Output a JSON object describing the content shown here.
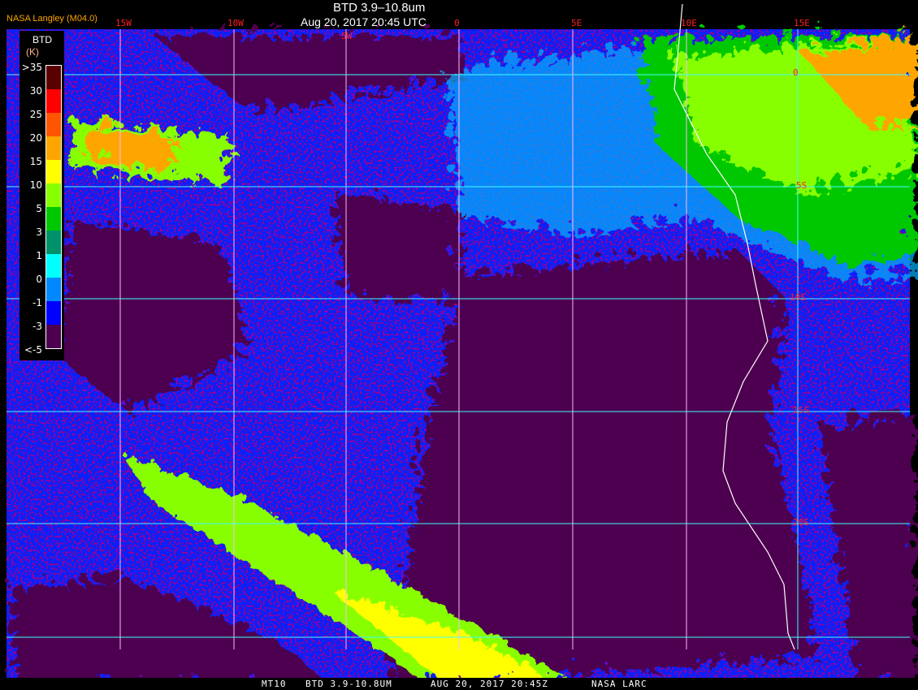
{
  "header": {
    "title": "BTD 3.9–10.8um",
    "subtitle": "Aug 20, 2017 20:45 UTC",
    "logo": "NASA Langley (M04.0)"
  },
  "grid": {
    "longitude_labels": [
      "15W",
      "10W",
      "5W",
      "0",
      "5E",
      "10E",
      "15E"
    ],
    "latitude_labels": [
      "0",
      "5S",
      "10S",
      "15S",
      "20S"
    ]
  },
  "legend": {
    "title": "BTD",
    "unit": "(K)",
    "labels": [
      ">35",
      "30",
      "25",
      "20",
      "15",
      "10",
      "5",
      "3",
      "1",
      "0",
      "-1",
      "-3",
      "<-5"
    ],
    "colors": [
      "#5a0000",
      "#5a0000",
      "#ff0000",
      "#ff5500",
      "#ffa500",
      "#ffff00",
      "#88ff00",
      "#00c800",
      "#00906a",
      "#00ffff",
      "#0088ff",
      "#0000ff",
      "#4d0050"
    ]
  },
  "footer": {
    "satellite": "MT10",
    "product": "BTD 3.9-10.8UM",
    "datetime": "AUG 20, 2017 20:45Z",
    "source": "NASA LARC"
  },
  "colors": {
    "clear_ocean": "#0022ff",
    "low_cloud": "#4d0050",
    "grid_lon": "#ffb6ff",
    "grid_lat": "#40ffff",
    "coastline": "#ffffff",
    "label": "#ff2020"
  }
}
